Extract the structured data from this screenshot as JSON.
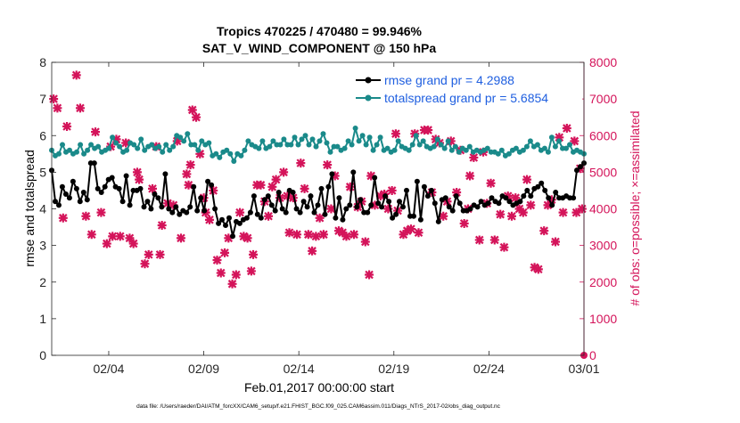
{
  "chart_data": {
    "type": "line",
    "title_line1": "Tropics 470225 / 470480 = 99.946%",
    "title_line2": "SAT_V_WIND_COMPONENT @ 150 hPa",
    "xlabel": "Feb.01,2017 00:00:00 start",
    "ylabel_left": "rmse and totalspread",
    "ylabel_right": "# of obs: o=possible; ×=assimilated",
    "footer": "data file: /Users/raeder/DAI/ATM_forcXX/CAM6_setup/f.e21.FHIST_BGC.f09_025.CAM6assim.011/Diags_NTrS_2017-02/obs_diag_output.nc",
    "xlim": [
      0,
      28
    ],
    "ylim_left": [
      0,
      8
    ],
    "ylim_right": [
      0,
      8000
    ],
    "x_ticks": [
      3,
      8,
      13,
      18,
      23,
      28
    ],
    "x_tick_labels": [
      "02/04",
      "02/09",
      "02/14",
      "02/19",
      "02/24",
      "03/01"
    ],
    "y_left_ticks": [
      "0",
      "1",
      "2",
      "3",
      "4",
      "5",
      "6",
      "7",
      "8"
    ],
    "y_right_ticks": [
      "0",
      "1000",
      "2000",
      "3000",
      "4000",
      "5000",
      "6000",
      "7000",
      "8000"
    ],
    "colors": {
      "rmse": "#000000",
      "spread": "#1a8a8a",
      "obs": "#d4145a",
      "legend_text": "#1f5fe0"
    },
    "series": [
      {
        "name": "rmse grand pr = 4.2988",
        "y": [
          5.05,
          4.2,
          4.1,
          4.6,
          4.4,
          4.3,
          4.75,
          4.55,
          4.2,
          4.45,
          4.25,
          5.25,
          5.25,
          4.55,
          4.45,
          4.6,
          4.8,
          4.85,
          4.6,
          4.55,
          4.2,
          4.9,
          4.1,
          4.5,
          4.5,
          4.55,
          4.05,
          4.2,
          4.0,
          4.4,
          4.3,
          4.05,
          4.95,
          4.0,
          3.9,
          4.05,
          3.85,
          3.95,
          3.9,
          4.05,
          4.6,
          3.95,
          4.3,
          3.95,
          4.75,
          4.65,
          4.0,
          3.6,
          3.7,
          3.55,
          3.75,
          3.25,
          3.65,
          3.6,
          3.7,
          3.75,
          3.9,
          4.35,
          3.85,
          3.75,
          4.25,
          4.35,
          4.1,
          3.95,
          4.45,
          4.0,
          3.9,
          4.5,
          4.45,
          4.0,
          3.9,
          4.2,
          4.05,
          4.35,
          3.9,
          4.1,
          4.55,
          3.85,
          4.6,
          4.95,
          3.75,
          4.3,
          3.7,
          4.0,
          4.1,
          5.0,
          4.05,
          4.25,
          3.9,
          3.9,
          4.1,
          4.85,
          4.15,
          4.05,
          4.35,
          4.2,
          3.75,
          3.85,
          4.2,
          4.05,
          4.5,
          3.8,
          3.8,
          4.75,
          3.7,
          4.6,
          4.35,
          4.5,
          4.15,
          3.65,
          4.25,
          4.3,
          4.05,
          3.95,
          4.35,
          4.15,
          3.95,
          3.95,
          4.0,
          4.1,
          4.05,
          4.2,
          4.1,
          4.15,
          4.3,
          4.2,
          4.15,
          4.35,
          4.3,
          4.2,
          4.1,
          4.15,
          4.2,
          4.35,
          4.5,
          4.35,
          4.55,
          4.6,
          4.7,
          4.5,
          4.3,
          4.1,
          4.45,
          4.3,
          4.3,
          4.35,
          4.3,
          4.3,
          5.05,
          5.15,
          5.25
        ]
      },
      {
        "name": "totalspread grand pr = 5.6854",
        "y": [
          5.6,
          5.45,
          5.5,
          5.75,
          5.55,
          5.6,
          5.5,
          5.55,
          5.75,
          5.5,
          5.6,
          5.75,
          5.65,
          5.7,
          5.55,
          5.6,
          5.65,
          5.95,
          5.8,
          5.7,
          5.55,
          5.6,
          5.8,
          5.75,
          5.65,
          5.9,
          5.6,
          5.7,
          5.75,
          5.65,
          5.7,
          5.55,
          5.75,
          5.6,
          5.7,
          6.0,
          5.95,
          5.85,
          6.05,
          5.75,
          5.75,
          5.6,
          5.85,
          5.75,
          5.8,
          5.45,
          5.5,
          5.4,
          5.55,
          5.6,
          5.5,
          5.3,
          5.5,
          5.45,
          5.6,
          5.85,
          5.75,
          5.7,
          5.65,
          5.85,
          5.65,
          5.7,
          5.85,
          5.75,
          5.75,
          5.9,
          5.75,
          5.75,
          5.95,
          5.75,
          5.9,
          6.0,
          5.75,
          5.9,
          5.7,
          5.85,
          6.05,
          5.8,
          5.55,
          5.7,
          5.7,
          5.6,
          5.65,
          5.85,
          5.75,
          6.2,
          5.85,
          6.0,
          5.75,
          5.95,
          5.6,
          5.75,
          5.95,
          5.6,
          5.65,
          5.55,
          5.6,
          5.85,
          5.7,
          5.65,
          5.6,
          5.75,
          6.0,
          5.75,
          5.85,
          5.7,
          5.65,
          5.7,
          5.9,
          5.75,
          5.65,
          5.85,
          5.6,
          5.7,
          5.55,
          5.65,
          5.6,
          5.7,
          5.55,
          5.6,
          5.55,
          5.6,
          5.65,
          5.55,
          5.55,
          5.5,
          5.6,
          5.45,
          5.5,
          5.6,
          5.65,
          5.55,
          5.6,
          5.7,
          5.85,
          5.7,
          5.75,
          5.6,
          5.65,
          5.55,
          5.95,
          5.7,
          5.85,
          5.65,
          5.65,
          5.75,
          5.55,
          5.6,
          5.55,
          5.5
        ]
      },
      {
        "name": "obs assimilated",
        "x": [
          0.1,
          0.3,
          0.6,
          0.8,
          1.3,
          1.5,
          1.8,
          2.1,
          2.3,
          2.6,
          2.9,
          3.1,
          3.2,
          3.4,
          3.6,
          3.9,
          4.1,
          4.3,
          4.5,
          4.6,
          4.9,
          5.1,
          5.3,
          5.5,
          5.7,
          5.8,
          6.1,
          6.4,
          6.6,
          6.8,
          7.1,
          7.2,
          7.3,
          7.4,
          7.6,
          7.8,
          8.0,
          8.1,
          8.3,
          8.5,
          8.7,
          8.9,
          9.1,
          9.3,
          9.5,
          9.7,
          9.9,
          10.1,
          10.3,
          10.5,
          10.6,
          10.8,
          11.0,
          11.2,
          11.4,
          11.6,
          11.8,
          12.0,
          12.2,
          12.4,
          12.5,
          12.7,
          12.9,
          13.1,
          13.3,
          13.5,
          13.7,
          13.9,
          14.1,
          14.3,
          14.5,
          14.7,
          14.9,
          15.1,
          15.3,
          15.5,
          15.7,
          15.9,
          16.1,
          16.3,
          16.5,
          16.7,
          16.8,
          17.0,
          17.3,
          17.5,
          17.7,
          17.9,
          18.1,
          18.2,
          18.5,
          18.7,
          18.9,
          19.1,
          19.3,
          19.6,
          19.8,
          20.0,
          20.2,
          20.4,
          20.6,
          20.8,
          21.0,
          21.3,
          21.5,
          21.7,
          21.9,
          22.0,
          22.2,
          22.5,
          22.7,
          22.9,
          23.1,
          23.3,
          23.6,
          23.8,
          24.0,
          24.2,
          24.4,
          24.6,
          24.8,
          25.0,
          25.2,
          25.4,
          25.6,
          25.9,
          26.1,
          26.3,
          26.5,
          26.7,
          26.9,
          27.1,
          27.3,
          27.5,
          27.6,
          27.8,
          27.9
        ],
        "y": [
          7000,
          6750,
          3750,
          6250,
          7650,
          6750,
          3800,
          3300,
          6100,
          3900,
          3050,
          5700,
          3250,
          5900,
          3250,
          5800,
          3200,
          3050,
          5000,
          4800,
          2500,
          2750,
          4550,
          5700,
          2750,
          3550,
          4150,
          4100,
          5850,
          3200,
          4950,
          4650,
          5200,
          6700,
          6500,
          5500,
          4300,
          3900,
          3700,
          4500,
          2600,
          2250,
          2800,
          3200,
          1950,
          2200,
          3900,
          3250,
          3200,
          2300,
          2750,
          4650,
          4650,
          4200,
          3800,
          4600,
          4800,
          4300,
          5000,
          4350,
          3350,
          4300,
          3300,
          5250,
          4550,
          3300,
          2850,
          3250,
          3750,
          3300,
          5200,
          4000,
          4900,
          3400,
          3350,
          3250,
          4600,
          3300,
          4050,
          4200,
          3100,
          2200,
          4900,
          4100,
          4350,
          4400,
          4000,
          4500,
          6050,
          3950,
          3300,
          3400,
          3450,
          6050,
          3350,
          6150,
          6150,
          4450,
          5900,
          5800,
          3800,
          4200,
          5850,
          4450,
          5600,
          3600,
          4000,
          4900,
          5400,
          3150,
          5550,
          4150,
          4700,
          3150,
          3850,
          2950,
          4350,
          3800,
          4300,
          4000,
          3900,
          4800,
          4100,
          2400,
          2350,
          3400,
          4100,
          4250,
          3100,
          5950,
          3900,
          6200,
          7200,
          5850,
          3900,
          5100,
          4000
        ],
        "last_point": [
          28.0,
          0
        ]
      }
    ]
  }
}
